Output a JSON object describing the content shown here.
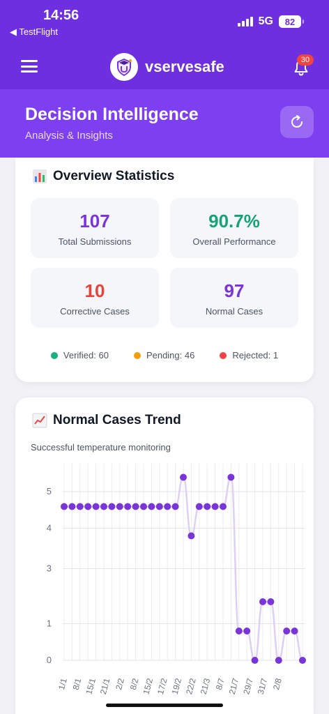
{
  "status": {
    "time": "14:56",
    "back_label": "◀ TestFlight",
    "network": "5G",
    "battery": "82"
  },
  "nav": {
    "brand": "vservesafe",
    "notifications": "30"
  },
  "header": {
    "title": "Decision Intelligence",
    "subtitle": "Analysis & Insights"
  },
  "overview": {
    "title": "Overview Statistics",
    "stats": [
      {
        "value": "107",
        "label": "Total Submissions",
        "color": "#7a35d9"
      },
      {
        "value": "90.7%",
        "label": "Overall Performance",
        "color": "#16a37a"
      },
      {
        "value": "10",
        "label": "Corrective Cases",
        "color": "#e5443e"
      },
      {
        "value": "97",
        "label": "Normal Cases",
        "color": "#7a35d9"
      }
    ],
    "legend": [
      {
        "label": "Verified: 60",
        "color": "#16b27c"
      },
      {
        "label": "Pending: 46",
        "color": "#f59e0b"
      },
      {
        "label": "Rejected: 1",
        "color": "#ef4444"
      }
    ]
  },
  "trend": {
    "title": "Normal Cases Trend",
    "subtitle": "Successful temperature monitoring"
  },
  "colors": {
    "primary": "#6d2fe0",
    "header": "#7e3ff0",
    "point": "#7a35d9"
  },
  "chart_data": {
    "type": "line",
    "title": "Normal Cases Trend",
    "subtitle": "Successful temperature monitoring",
    "y_ticks": [
      "0",
      "1",
      "3",
      "4",
      "5"
    ],
    "x_tick_labels": [
      "1/1",
      "8/1",
      "15/1",
      "21/1",
      "2/2",
      "8/2",
      "15/2",
      "17/2",
      "19/2",
      "22/2",
      "21/3",
      "8/7",
      "21/7",
      "29/7",
      "31/7",
      "2/8"
    ],
    "values": [
      4.2,
      4.2,
      4.2,
      4.2,
      4.2,
      4.2,
      4.2,
      4.2,
      4.2,
      4.2,
      4.2,
      4.2,
      4.2,
      4.2,
      4.2,
      5,
      3.4,
      4.2,
      4.2,
      4.2,
      4.2,
      5,
      0.8,
      0.8,
      0,
      1.6,
      1.6,
      0,
      0.8,
      0.8,
      0
    ],
    "grid": true,
    "legend": "none",
    "curve_color": "#ddd0f3",
    "point_color": "#7a35d9"
  }
}
